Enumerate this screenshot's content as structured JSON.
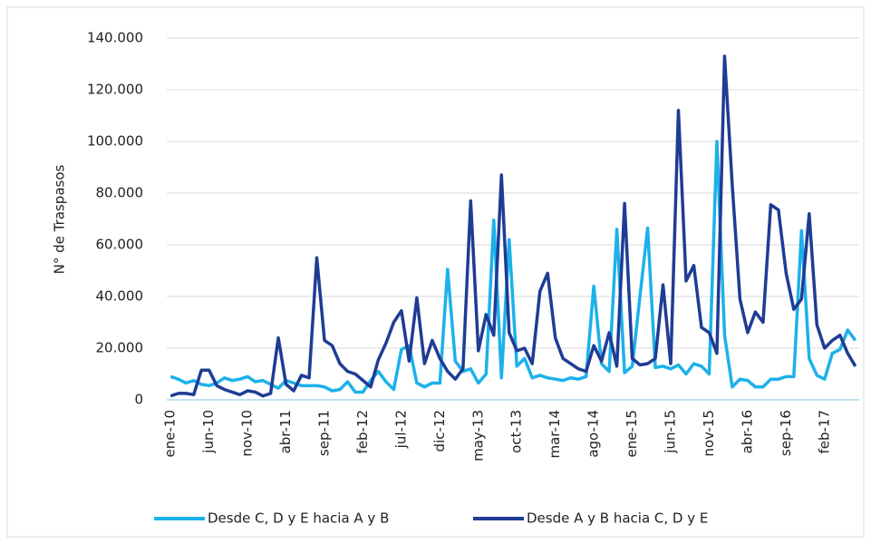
{
  "chart_data": {
    "type": "line",
    "y_label": "N° de Traspasos",
    "categories": [
      "ene-10",
      null,
      null,
      null,
      null,
      "jun-10",
      null,
      null,
      null,
      null,
      "nov-10",
      null,
      null,
      null,
      null,
      "abr-11",
      null,
      null,
      null,
      null,
      "sep-11",
      null,
      null,
      null,
      null,
      "feb-12",
      null,
      null,
      null,
      null,
      "jul-12",
      null,
      null,
      null,
      null,
      "dic-12",
      null,
      null,
      null,
      null,
      "may-13",
      null,
      null,
      null,
      null,
      "oct-13",
      null,
      null,
      null,
      null,
      "mar-14",
      null,
      null,
      null,
      null,
      "ago-14",
      null,
      null,
      null,
      null,
      "ene-15",
      null,
      null,
      null,
      null,
      "jun-15",
      null,
      null,
      null,
      null,
      "nov-15",
      null,
      null,
      null,
      null,
      "abr-16",
      null,
      null,
      null,
      null,
      "sep-16",
      null,
      null,
      null,
      null,
      "feb-17",
      null,
      null,
      null,
      null
    ],
    "series": [
      {
        "name": "Desde C, D y E hacia A y B",
        "color": "#1cb1ea",
        "values": [
          9000,
          8000,
          6500,
          7500,
          6000,
          5500,
          6500,
          8500,
          7500,
          8000,
          9000,
          7000,
          7500,
          6000,
          4500,
          7500,
          6500,
          5500,
          5500,
          5500,
          5000,
          3500,
          4000,
          7000,
          3000,
          3000,
          7500,
          11000,
          7000,
          4000,
          19500,
          21000,
          6500,
          5000,
          6500,
          6500,
          50500,
          15000,
          11000,
          12000,
          6500,
          10000,
          69500,
          8500,
          62000,
          13000,
          16000,
          8500,
          9500,
          8500,
          8000,
          7500,
          8500,
          8000,
          9000,
          44000,
          14000,
          11000,
          66000,
          10500,
          13000,
          40000,
          66500,
          12500,
          13000,
          12000,
          13500,
          10000,
          14000,
          13000,
          10000,
          100000,
          25000,
          5000,
          8000,
          7500,
          5000,
          5000,
          8000,
          8000,
          9000,
          9000,
          65500,
          16000,
          9500,
          8000,
          18000,
          19500,
          27000,
          23000
        ]
      },
      {
        "name": "Desde A y B hacia C, D y E",
        "color": "#1f3c94",
        "values": [
          1500,
          2500,
          2500,
          2000,
          11500,
          11500,
          5500,
          4000,
          3000,
          2000,
          3500,
          3000,
          1500,
          2500,
          24000,
          6000,
          3500,
          9500,
          8500,
          55000,
          23000,
          21000,
          14000,
          11000,
          10000,
          7500,
          5000,
          15500,
          22000,
          30000,
          34500,
          15000,
          39500,
          14000,
          23000,
          16000,
          11000,
          8000,
          12000,
          77000,
          19000,
          33000,
          25000,
          87000,
          26000,
          19000,
          20000,
          14000,
          42000,
          49000,
          24000,
          16000,
          14000,
          12000,
          11000,
          21000,
          15000,
          26000,
          13000,
          76000,
          16000,
          13500,
          14000,
          16000,
          44500,
          14000,
          112000,
          46000,
          52000,
          28000,
          26000,
          18000,
          133000,
          83000,
          39000,
          26000,
          34000,
          30000,
          75500,
          73500,
          49000,
          35000,
          39000,
          72000,
          29000,
          20000,
          23000,
          25000,
          18000,
          13000
        ]
      }
    ],
    "ylim": [
      0,
      140000
    ],
    "yticks": [
      0,
      {
        "value": 20000,
        "label": "20.000"
      },
      {
        "value": 40000,
        "label": "40.000"
      },
      {
        "value": 60000,
        "label": "60.000"
      },
      {
        "value": 80000,
        "label": "80.000"
      },
      {
        "value": 100000,
        "label": "100.000"
      },
      {
        "value": 120000,
        "label": "120.000"
      },
      {
        "value": 140000,
        "label": "140.000"
      }
    ],
    "grid": true
  }
}
